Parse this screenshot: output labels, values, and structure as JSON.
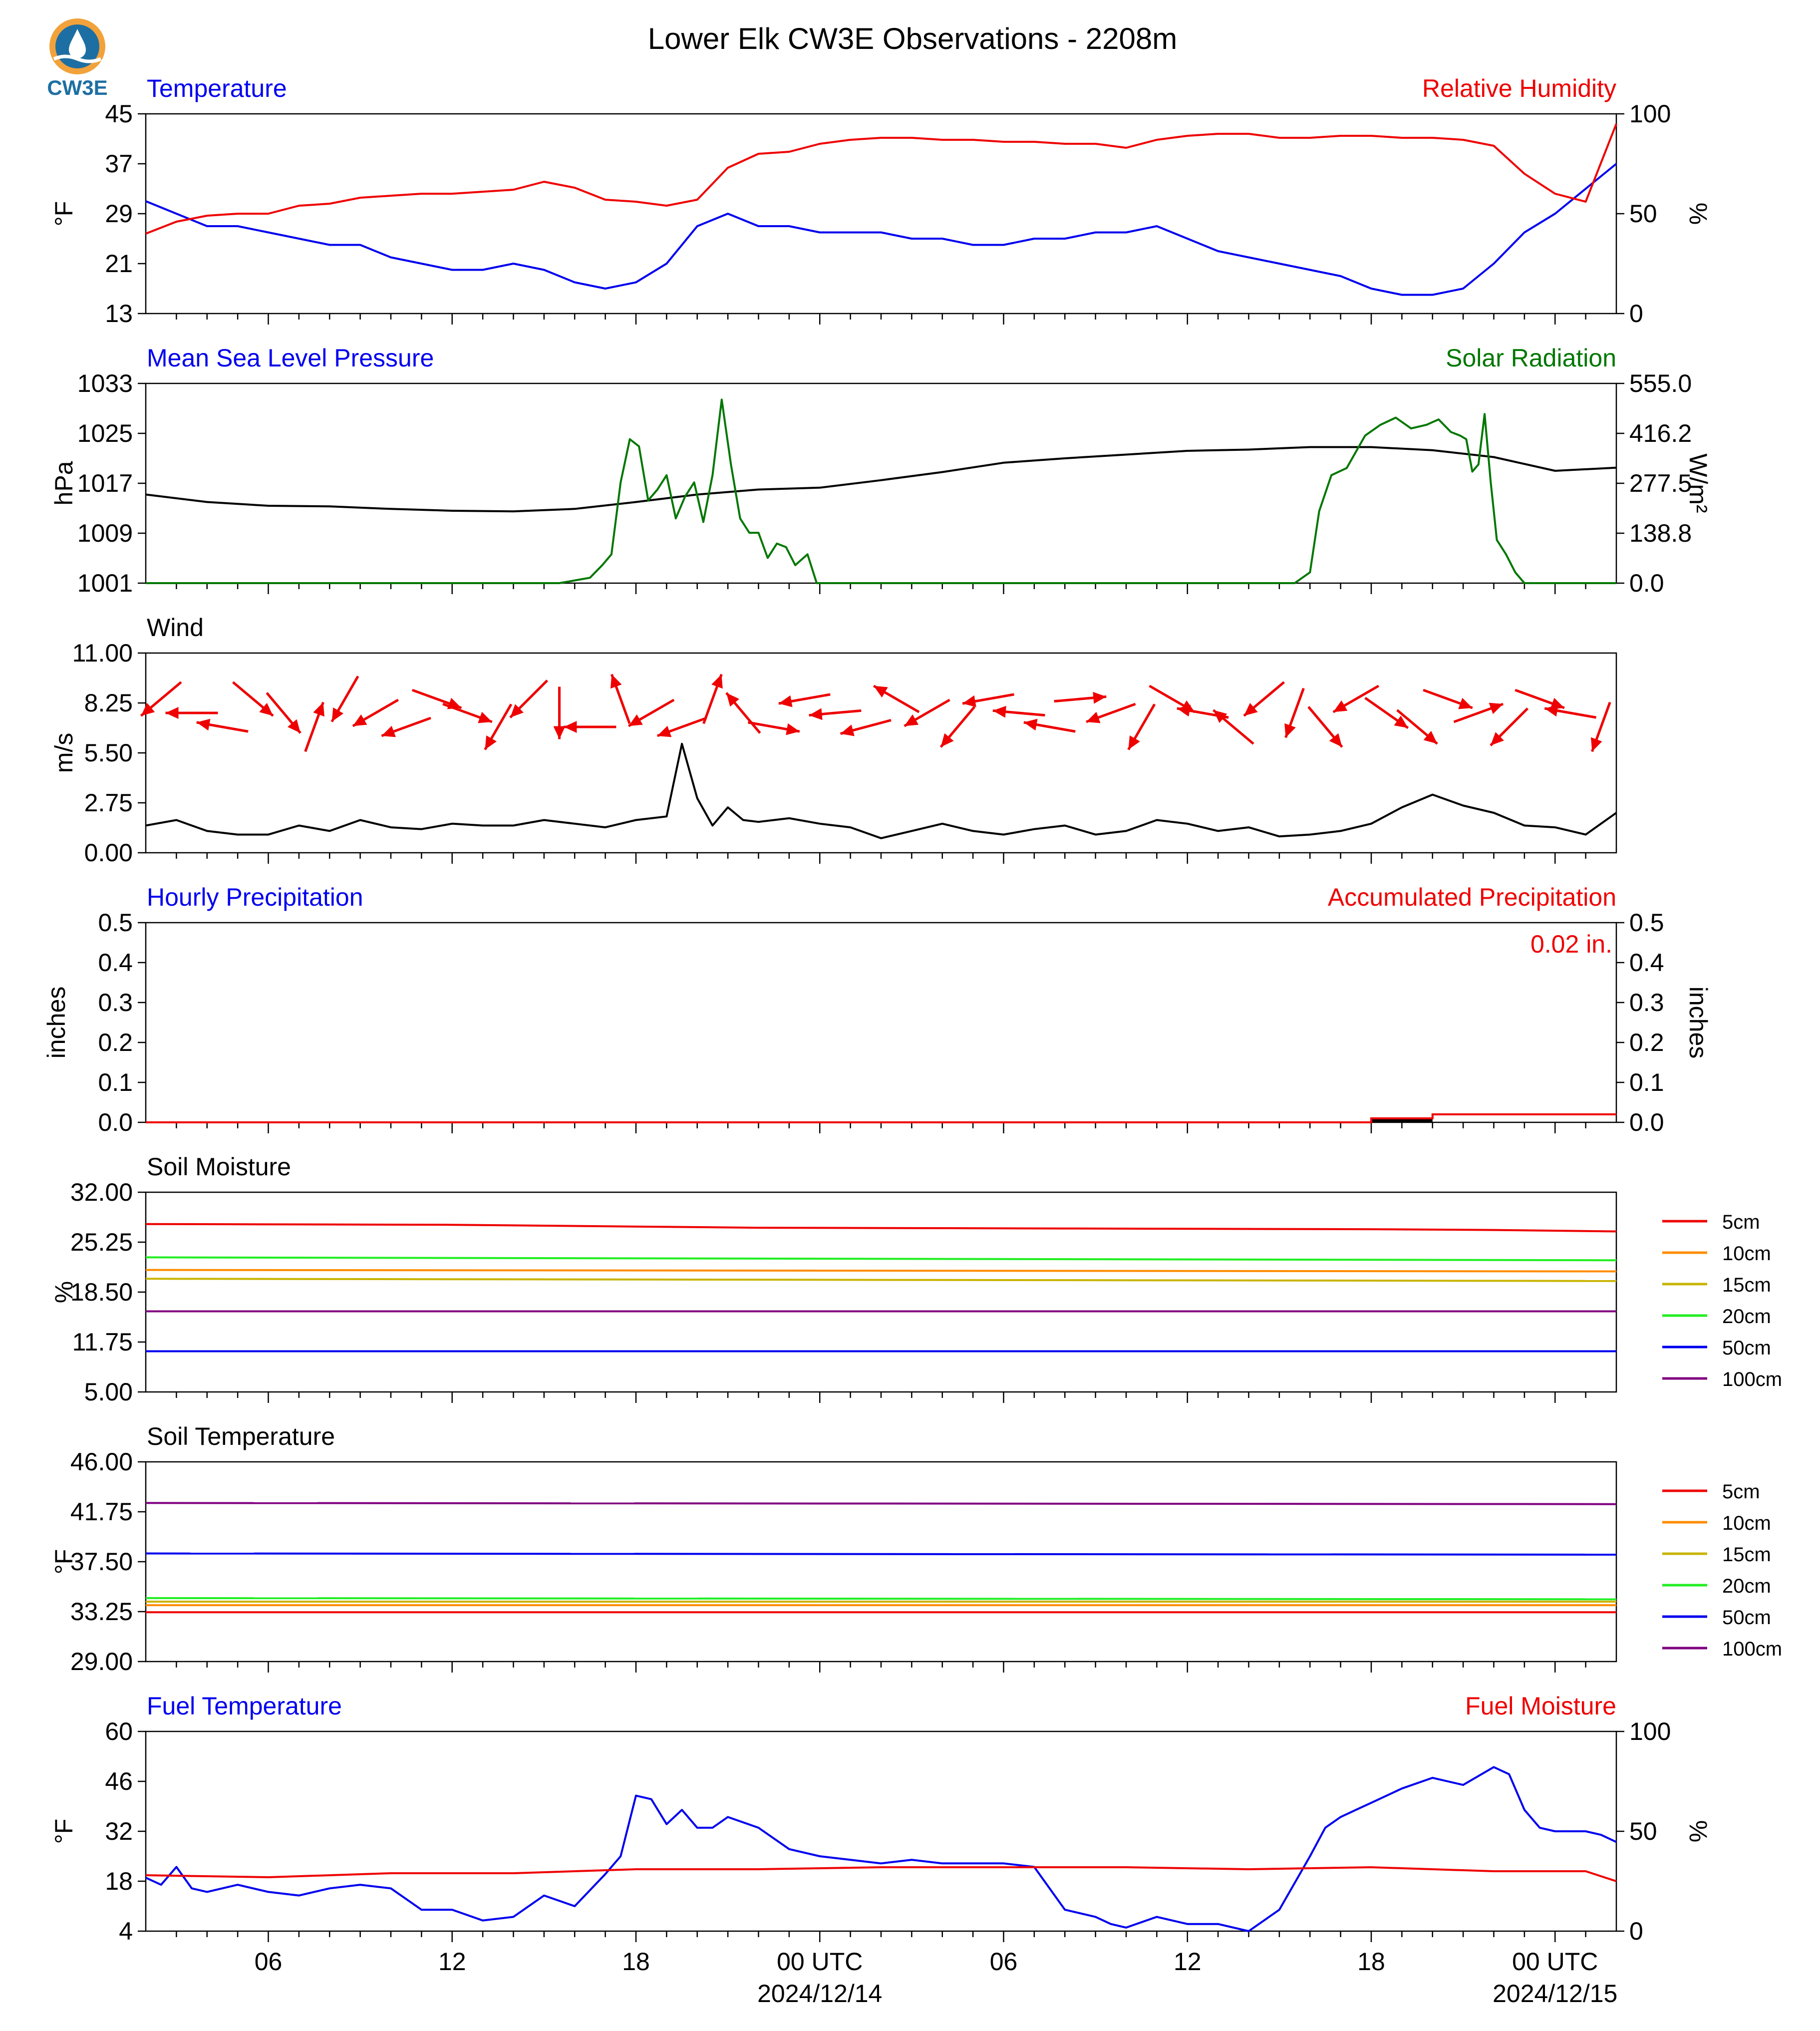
{
  "title": "Lower Elk CW3E Observations - 2208m",
  "logo": {
    "text": "CW3E",
    "icon": "water-drop-sun-logo"
  },
  "colors": {
    "blue": "#0000ee",
    "red": "#ee0000",
    "green": "#007700",
    "black": "#000000",
    "orange": "#ff8c00",
    "olive": "#c8b400",
    "lime": "#22ee22",
    "purple": "#800080"
  },
  "x_axis": {
    "range": [
      "2024-12-13 02:00",
      "2024-12-15 02:00"
    ],
    "tick_labels": [
      "06",
      "12",
      "18",
      "00 UTC",
      "06",
      "12",
      "18",
      "00 UTC"
    ],
    "date_labels": [
      "2024/12/14",
      "2024/12/15"
    ]
  },
  "chart_data": [
    {
      "id": "temperature_rh",
      "type": "line",
      "left_title": "Temperature",
      "right_title": "Relative Humidity",
      "ylabel_left": "°F",
      "ylabel_right": "%",
      "ylim_left": [
        13,
        45
      ],
      "ylim_right": [
        0,
        100
      ],
      "yticks_left": [
        "45",
        "37",
        "29",
        "21",
        "13"
      ],
      "yticks_right": [
        "100",
        "50",
        "0"
      ],
      "series": [
        {
          "axis": "left",
          "color": "#0000ee",
          "x": [
            0,
            1,
            2,
            3,
            4,
            5,
            6,
            7,
            8,
            9,
            10,
            11,
            12,
            13,
            14,
            15,
            16,
            17,
            18,
            19,
            20,
            21,
            22,
            23,
            24,
            25,
            26,
            27,
            28,
            29,
            30,
            31,
            32,
            33,
            34,
            35,
            36,
            37,
            38,
            39,
            40,
            41,
            42,
            43,
            44,
            45,
            46,
            47,
            48
          ],
          "y": [
            31,
            29,
            27,
            27,
            26,
            25,
            24,
            24,
            22,
            21,
            20,
            20,
            21,
            20,
            18,
            17,
            18,
            21,
            27,
            29,
            27,
            27,
            26,
            26,
            26,
            25,
            25,
            24,
            24,
            25,
            25,
            26,
            26,
            27,
            25,
            23,
            22,
            21,
            20,
            19,
            17,
            16,
            16,
            17,
            21,
            26,
            29,
            33,
            37
          ]
        },
        {
          "axis": "right",
          "color": "#ee0000",
          "x": [
            0,
            1,
            2,
            3,
            4,
            5,
            6,
            7,
            8,
            9,
            10,
            11,
            12,
            13,
            14,
            15,
            16,
            17,
            18,
            19,
            20,
            21,
            22,
            23,
            24,
            25,
            26,
            27,
            28,
            29,
            30,
            31,
            32,
            33,
            34,
            35,
            36,
            37,
            38,
            39,
            40,
            41,
            42,
            43,
            44,
            45,
            46,
            47,
            48
          ],
          "y": [
            40,
            46,
            49,
            50,
            50,
            54,
            55,
            58,
            59,
            60,
            60,
            61,
            62,
            66,
            63,
            57,
            56,
            54,
            57,
            73,
            80,
            81,
            85,
            87,
            88,
            88,
            87,
            87,
            86,
            86,
            85,
            85,
            83,
            87,
            89,
            90,
            90,
            88,
            88,
            89,
            89,
            88,
            88,
            87,
            84,
            70,
            60,
            56,
            95
          ]
        }
      ]
    },
    {
      "id": "pressure_solar",
      "type": "line",
      "left_title": "Mean Sea Level Pressure",
      "right_title": "Solar Radiation",
      "ylabel_left": "hPa",
      "ylabel_right": "W/m²",
      "ylim_left": [
        1001,
        1033
      ],
      "ylim_right": [
        0,
        555
      ],
      "yticks_left": [
        "1033",
        "1025",
        "1017",
        "1009",
        "1001"
      ],
      "yticks_right": [
        "555.0",
        "416.2",
        "277.5",
        "138.8",
        "0.0"
      ],
      "series": [
        {
          "axis": "left",
          "color": "#000000",
          "x": [
            0,
            2,
            4,
            6,
            8,
            10,
            12,
            14,
            16,
            18,
            20,
            22,
            24,
            26,
            28,
            30,
            32,
            34,
            36,
            38,
            40,
            42,
            44,
            46,
            48
          ],
          "y": [
            1015.2,
            1014.0,
            1013.4,
            1013.3,
            1012.9,
            1012.6,
            1012.5,
            1012.9,
            1014.0,
            1015.2,
            1016.0,
            1016.3,
            1017.5,
            1018.8,
            1020.3,
            1021.0,
            1021.6,
            1022.2,
            1022.4,
            1022.8,
            1022.8,
            1022.3,
            1021.2,
            1019.0,
            1019.5
          ]
        },
        {
          "axis": "right",
          "color": "#007700",
          "x": [
            0,
            12.5,
            13.5,
            14.5,
            14.9,
            15.2,
            15.5,
            15.8,
            16.1,
            16.4,
            16.7,
            17,
            17.3,
            17.6,
            17.9,
            18.2,
            18.5,
            18.8,
            19.1,
            19.4,
            19.7,
            20,
            20.3,
            20.6,
            20.9,
            21.2,
            21.6,
            21.9,
            22.3,
            22.6,
            23,
            24,
            37.5,
            38,
            38.3,
            38.7,
            39.2,
            39.8,
            40.3,
            40.8,
            41.3,
            41.8,
            42.2,
            42.6,
            42.9,
            43.1,
            43.3,
            43.5,
            43.7,
            43.9,
            44.1,
            44.4,
            44.7,
            45,
            45.5,
            46,
            48
          ],
          "y": [
            0,
            0,
            0,
            15,
            50,
            80,
            280,
            400,
            380,
            230,
            260,
            300,
            180,
            240,
            280,
            170,
            300,
            510,
            330,
            180,
            140,
            140,
            70,
            110,
            100,
            50,
            80,
            0,
            0,
            0,
            0,
            0,
            0,
            30,
            200,
            300,
            320,
            410,
            440,
            460,
            430,
            440,
            455,
            420,
            410,
            400,
            310,
            330,
            470,
            280,
            120,
            80,
            30,
            0,
            0,
            0,
            0
          ]
        }
      ]
    },
    {
      "id": "wind",
      "type": "line",
      "left_title": "Wind",
      "ylabel_left": "m/s",
      "ylim_left": [
        0,
        11
      ],
      "yticks_left": [
        "11.00",
        "8.25",
        "5.50",
        "2.75",
        "0.00"
      ],
      "series": [
        {
          "axis": "left",
          "color": "#000000",
          "x": [
            0,
            1,
            2,
            3,
            4,
            5,
            6,
            7,
            8,
            9,
            10,
            11,
            12,
            13,
            14,
            15,
            16,
            17,
            17.5,
            18,
            18.5,
            19,
            19.5,
            20,
            21,
            22,
            23,
            24,
            25,
            26,
            27,
            28,
            29,
            30,
            31,
            32,
            33,
            34,
            35,
            36,
            37,
            38,
            39,
            40,
            41,
            42,
            43,
            44,
            45,
            46,
            47,
            48
          ],
          "y": [
            1.5,
            1.8,
            1.2,
            1.0,
            1.0,
            1.5,
            1.2,
            1.8,
            1.4,
            1.3,
            1.6,
            1.5,
            1.5,
            1.8,
            1.6,
            1.4,
            1.8,
            2.0,
            6.0,
            3.0,
            1.5,
            2.5,
            1.8,
            1.7,
            1.9,
            1.6,
            1.4,
            0.8,
            1.2,
            1.6,
            1.2,
            1.0,
            1.3,
            1.5,
            1.0,
            1.2,
            1.8,
            1.6,
            1.2,
            1.4,
            0.9,
            1.0,
            1.2,
            1.6,
            2.5,
            3.2,
            2.6,
            2.2,
            1.5,
            1.4,
            1.0,
            2.2
          ]
        }
      ],
      "barbs": {
        "color": "#ee0000",
        "x": [
          0.5,
          1.5,
          2.5,
          3.5,
          4.5,
          5.5,
          6.5,
          7.5,
          8.5,
          9.5,
          10.5,
          11.5,
          12.5,
          13.5,
          14.5,
          15.5,
          16.5,
          17.5,
          18.5,
          19.5,
          20.5,
          21.5,
          22.5,
          23.5,
          24.5,
          25.5,
          26.5,
          27.5,
          28.5,
          29.5,
          30.5,
          31.5,
          32.5,
          33.5,
          34.5,
          35.5,
          36.5,
          37.5,
          38.5,
          39.5,
          40.5,
          41.5,
          42.5,
          43.5,
          44.5,
          45.5,
          46.5,
          47.5
        ],
        "dir_deg": [
          230,
          270,
          280,
          130,
          140,
          20,
          210,
          240,
          250,
          110,
          110,
          210,
          225,
          180,
          270,
          340,
          240,
          250,
          20,
          320,
          100,
          260,
          265,
          255,
          300,
          240,
          220,
          260,
          275,
          280,
          85,
          250,
          210,
          120,
          280,
          310,
          230,
          200,
          140,
          240,
          125,
          130,
          110,
          70,
          225,
          110,
          280,
          200
        ]
      }
    },
    {
      "id": "precipitation",
      "type": "bar",
      "left_title": "Hourly Precipitation",
      "right_title": "Accumulated Precipitation",
      "ylabel_left": "inches",
      "ylabel_right": "inches",
      "ylim_left": [
        0,
        0.5
      ],
      "ylim_right": [
        0,
        0.5
      ],
      "yticks_left": [
        "0.5",
        "0.4",
        "0.3",
        "0.2",
        "0.1",
        "0.0"
      ],
      "yticks_right": [
        "0.5",
        "0.4",
        "0.3",
        "0.2",
        "0.1",
        "0.0"
      ],
      "total_label": "0.02 in.",
      "hourly": {
        "color": "#000000",
        "x_start": [
          40
        ],
        "x_end": [
          42
        ],
        "values": [
          0.01
        ]
      },
      "accumulated": {
        "color": "#ee0000",
        "x": [
          0,
          40,
          40,
          42,
          42,
          48
        ],
        "y": [
          0,
          0,
          0.01,
          0.01,
          0.02,
          0.02
        ]
      }
    },
    {
      "id": "soil_moisture",
      "type": "line",
      "left_title": "Soil Moisture",
      "ylabel_left": "%",
      "ylim_left": [
        5,
        32
      ],
      "yticks_left": [
        "32.00",
        "25.25",
        "18.50",
        "11.75",
        "5.00"
      ],
      "legend": {
        "placement": "right"
      },
      "series": [
        {
          "name": "5cm",
          "color": "#ee0000",
          "x": [
            0,
            10,
            20,
            30,
            40,
            44,
            48
          ],
          "y": [
            27.7,
            27.6,
            27.2,
            27.1,
            27.0,
            26.9,
            26.7
          ]
        },
        {
          "name": "10cm",
          "color": "#ff8c00",
          "x": [
            0,
            48
          ],
          "y": [
            21.5,
            21.3
          ]
        },
        {
          "name": "15cm",
          "color": "#c8b400",
          "x": [
            0,
            48
          ],
          "y": [
            20.3,
            20.0
          ]
        },
        {
          "name": "20cm",
          "color": "#22ee22",
          "x": [
            0,
            48
          ],
          "y": [
            23.2,
            22.8
          ]
        },
        {
          "name": "50cm",
          "color": "#0000ee",
          "x": [
            0,
            48
          ],
          "y": [
            10.5,
            10.5
          ]
        },
        {
          "name": "100cm",
          "color": "#800080",
          "x": [
            0,
            48
          ],
          "y": [
            15.9,
            15.9
          ]
        }
      ]
    },
    {
      "id": "soil_temperature",
      "type": "line",
      "left_title": "Soil Temperature",
      "ylabel_left": "°F",
      "ylim_left": [
        29,
        46
      ],
      "yticks_left": [
        "46.00",
        "41.75",
        "37.50",
        "33.25",
        "29.00"
      ],
      "legend": {
        "placement": "right"
      },
      "series": [
        {
          "name": "5cm",
          "color": "#ee0000",
          "x": [
            0,
            48
          ],
          "y": [
            33.2,
            33.2
          ]
        },
        {
          "name": "10cm",
          "color": "#ff8c00",
          "x": [
            0,
            48
          ],
          "y": [
            33.8,
            33.8
          ]
        },
        {
          "name": "15cm",
          "color": "#c8b400",
          "x": [
            0,
            48
          ],
          "y": [
            34.1,
            34.1
          ]
        },
        {
          "name": "20cm",
          "color": "#22ee22",
          "x": [
            0,
            48
          ],
          "y": [
            34.4,
            34.3
          ]
        },
        {
          "name": "50cm",
          "color": "#0000ee",
          "x": [
            0,
            48
          ],
          "y": [
            38.2,
            38.1
          ]
        },
        {
          "name": "100cm",
          "color": "#800080",
          "x": [
            0,
            48
          ],
          "y": [
            42.5,
            42.4
          ]
        }
      ]
    },
    {
      "id": "fuel",
      "type": "line",
      "left_title": "Fuel Temperature",
      "right_title": "Fuel Moisture",
      "ylabel_left": "°F",
      "ylabel_right": "%",
      "ylim_left": [
        4,
        60
      ],
      "ylim_right": [
        0,
        100
      ],
      "yticks_left": [
        "60",
        "46",
        "32",
        "18",
        "4"
      ],
      "yticks_right": [
        "100",
        "50",
        "0"
      ],
      "series": [
        {
          "axis": "left",
          "color": "#0000ee",
          "x": [
            0,
            0.5,
            1,
            1.5,
            2,
            3,
            4,
            5,
            6,
            7,
            8,
            9,
            10,
            11,
            12,
            13,
            14,
            15,
            15.5,
            16,
            16.5,
            17,
            17.5,
            18,
            18.5,
            19,
            20,
            21,
            22,
            23,
            24,
            25,
            26,
            27,
            28,
            29,
            30,
            31,
            31.5,
            32,
            33,
            34,
            35,
            36,
            37,
            38,
            38.5,
            39,
            39.5,
            40,
            41,
            42,
            43,
            44,
            44.5,
            45,
            45.5,
            46,
            47,
            47.5,
            48
          ],
          "y": [
            19,
            17,
            22,
            16,
            15,
            17,
            15,
            14,
            16,
            17,
            16,
            10,
            10,
            7,
            8,
            14,
            11,
            20,
            25,
            42,
            41,
            34,
            38,
            33,
            33,
            36,
            33,
            27,
            25,
            24,
            23,
            24,
            23,
            23,
            23,
            22,
            10,
            8,
            6,
            5,
            8,
            6,
            6,
            4,
            10,
            25,
            33,
            36,
            38,
            40,
            44,
            47,
            45,
            50,
            48,
            38,
            33,
            32,
            32,
            31,
            29
          ]
        },
        {
          "axis": "right",
          "color": "#ee0000",
          "x": [
            0,
            4,
            8,
            12,
            16,
            20,
            24,
            28,
            32,
            36,
            40,
            44,
            47,
            48
          ],
          "y": [
            28,
            27,
            29,
            29,
            31,
            31,
            32,
            32,
            32,
            31,
            32,
            30,
            30,
            25
          ]
        }
      ]
    }
  ]
}
